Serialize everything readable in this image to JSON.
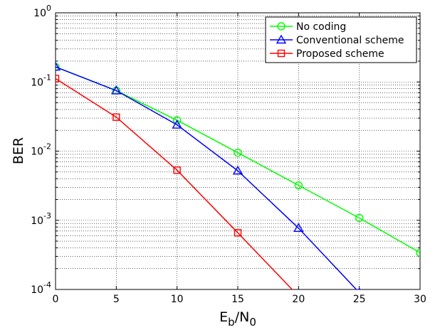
{
  "chart_data": {
    "type": "line",
    "title": "",
    "xlabel": {
      "main": "E",
      "sub1": "b",
      "sep": "/N",
      "sub2": "0"
    },
    "ylabel": "BER",
    "xlim": [
      0,
      30
    ],
    "ylim": [
      0.0001,
      1
    ],
    "yscale": "log",
    "grid": true,
    "legend_position": "top-right",
    "x_ticks": [
      "0",
      "5",
      "10",
      "15",
      "20",
      "25",
      "30"
    ],
    "y_ticks": [
      {
        "base": "10",
        "exp": "0"
      },
      {
        "base": "10",
        "exp": "-1"
      },
      {
        "base": "10",
        "exp": "-2"
      },
      {
        "base": "10",
        "exp": "-3"
      },
      {
        "base": "10",
        "exp": "-4"
      }
    ],
    "series": [
      {
        "name": "No coding",
        "color": "#00ff00",
        "marker": "circle",
        "x": [
          0,
          5,
          10,
          15,
          20,
          25,
          30
        ],
        "y": [
          0.165,
          0.075,
          0.028,
          0.0095,
          0.0032,
          0.00108,
          0.00034
        ]
      },
      {
        "name": "Conventional scheme",
        "color": "#0000ff",
        "marker": "triangle",
        "x": [
          0,
          5,
          10,
          15,
          20,
          25
        ],
        "y": [
          0.165,
          0.075,
          0.024,
          0.0052,
          0.00077,
          9e-05
        ]
      },
      {
        "name": "Proposed scheme",
        "color": "#ff0000",
        "marker": "square",
        "x": [
          0,
          5,
          10,
          15,
          20
        ],
        "y": [
          0.112,
          0.031,
          0.0053,
          0.00066,
          8e-05
        ]
      }
    ]
  }
}
